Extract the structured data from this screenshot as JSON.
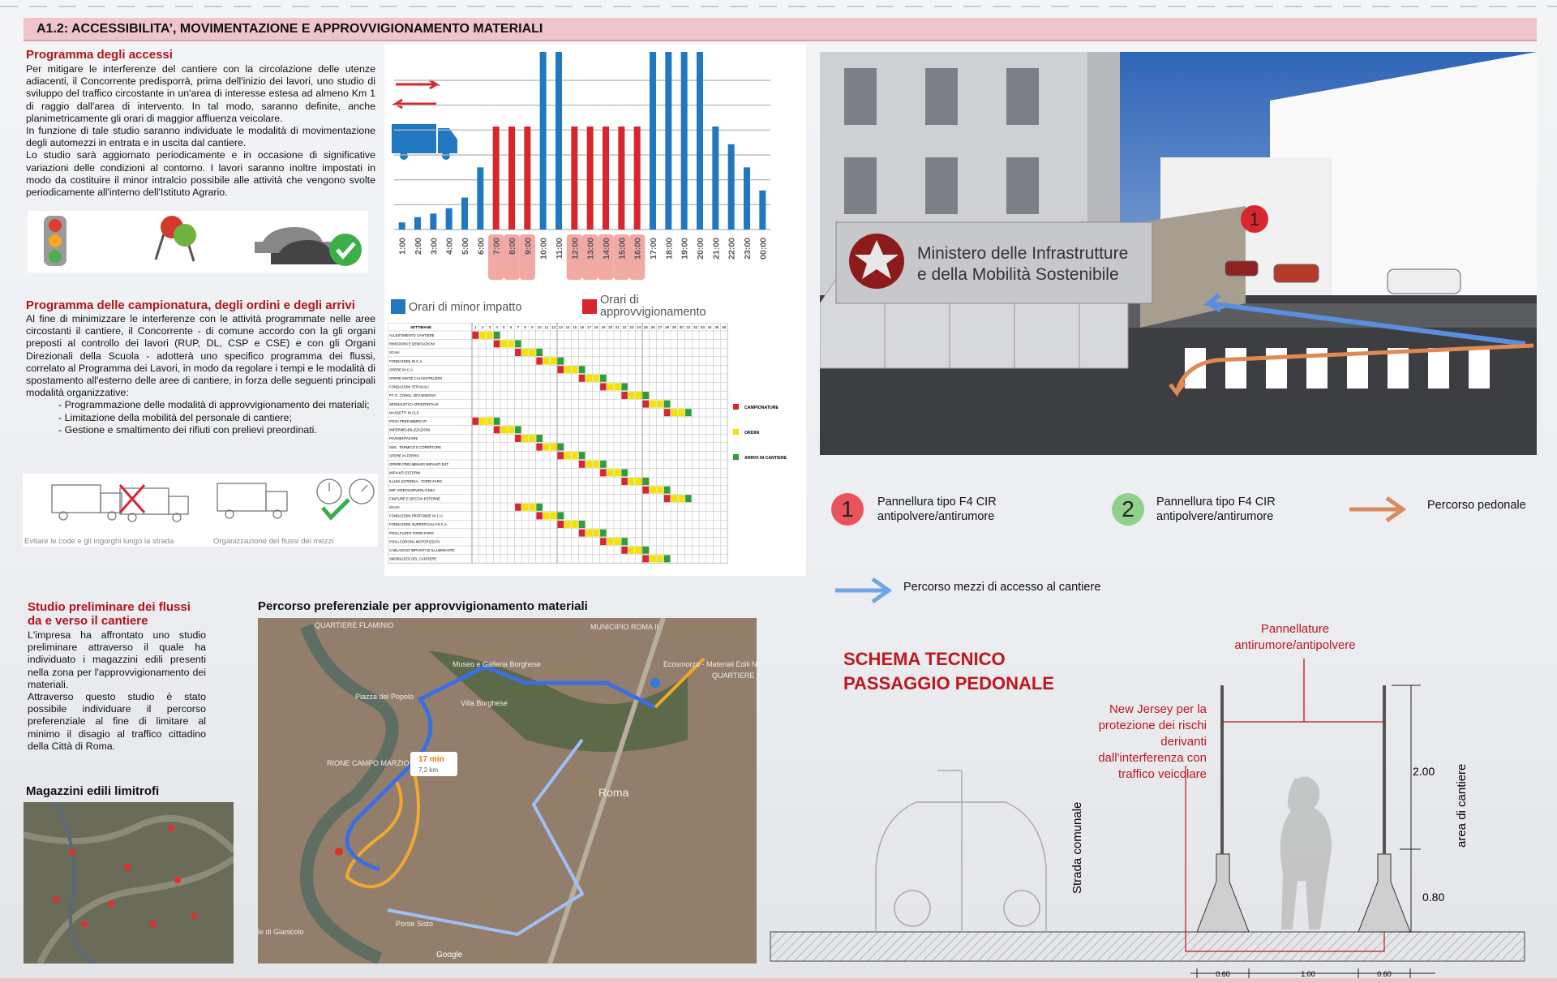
{
  "header": {
    "title": "A1.2: ACCESSIBILITA’, MOVIMENTAZIONE E APPROVVIGIONAMENTO MATERIALI"
  },
  "access": {
    "title": "Programma degli accessi",
    "paragraphs": [
      "Per mitigare le interferenze del cantiere con la circolazione delle utenze adiacenti, il Concorrente predisporrà, prima dell'inizio dei lavori, uno studio di sviluppo del traffico circostante in un'area di interesse estesa ad almeno Km 1 di raggio dall'area di intervento. In tal modo, saranno definite, anche planimetricamente gli orari di maggior affluenza veicolare.",
      "In funzione di tale studio saranno individuate le modalità di movimentazione degli automezzi in entrata e in uscita dal cantiere.",
      "Lo studio sarà aggiornato periodicamente e in occasione di significative variazioni delle condizioni al contorno. I lavori saranno inoltre impostati in modo da costituire il minor intralcio possibile alle attività che vengono svolte periodicamente all'interno dell'Istituto Agrario."
    ]
  },
  "campionature": {
    "title": "Programma delle campionatura, degli ordini e degli arrivi",
    "intro": "Al fine di minimizzare le interferenze con le attività programmate nelle aree circostanti il cantiere, il Concorrente - di comune accordo con la gli organi preposti al controllo dei lavori (RUP, DL, CSP e CSE) e con gli Organi Direzionali della Scuola - adotterà uno specifico programma dei flussi, correlato al Programma dei Lavori, in modo da regolare i tempi e le modalità di spostamento all'esterno delle aree di cantiere, in forza delle seguenti principali modalità organizzative:",
    "bullets": [
      "- Programmazione delle modalità di approvvigionamento dei materiali;",
      "- Limitazione della mobilità del personale di cantiere;",
      "- Gestione e smaltimento dei rifiuti con prelievi preordinati."
    ]
  },
  "flows": {
    "captions": [
      "Evitare le code e gli ingorghi lungo la strada",
      "Organizzazione dei flussi dei mezzi"
    ]
  },
  "traffic_chart": {
    "type": "bar",
    "categories": [
      "1:00",
      "2:00",
      "3:00",
      "4:00",
      "5:00",
      "6:00",
      "7:00",
      "8:00",
      "9:00",
      "10:00",
      "11:00",
      "12:00",
      "13:00",
      "14:00",
      "15:00",
      "16:00",
      "17:00",
      "18:00",
      "19:00",
      "20:00",
      "21:00",
      "22:00",
      "23:00",
      "00:00"
    ],
    "series": [
      {
        "name": "Orari di minor impatto",
        "color": "#1f78c1",
        "values": [
          4,
          7,
          9,
          12,
          18,
          35,
          null,
          null,
          null,
          100,
          100,
          null,
          null,
          null,
          null,
          null,
          100,
          100,
          100,
          100,
          58,
          48,
          35,
          22
        ]
      },
      {
        "name": "Orari di approvvigionamento",
        "color": "#d7262e",
        "values": [
          null,
          null,
          null,
          null,
          null,
          null,
          58,
          58,
          58,
          null,
          null,
          58,
          58,
          58,
          58,
          58,
          null,
          null,
          null,
          null,
          null,
          null,
          null,
          null
        ]
      }
    ],
    "ylim": [
      0,
      100
    ],
    "yticks": [
      0,
      14,
      28,
      42,
      56,
      70,
      84
    ],
    "grid": true
  },
  "schedule": {
    "week_header": "SETTIMANE",
    "weeks": [
      1,
      2,
      3,
      4,
      5,
      6,
      7,
      8,
      9,
      10,
      11,
      12,
      13,
      14,
      15,
      16,
      17,
      18,
      19,
      20,
      21,
      22,
      23,
      24,
      25,
      26,
      27,
      28,
      29,
      30,
      31,
      32,
      33,
      34,
      35,
      36
    ],
    "activities": [
      "ALLESTIMENTO CANTIERE",
      "RIMOZIONI E DEMOLIZIONI",
      "SCAVI",
      "FONDAZIONI IN C.A.",
      "OPERE IN C.A.",
      "OPERE MISTE CALCESTRUZZO",
      "FONDAZIONI STRADALI",
      "P.T.O. CONGL. BITUMINOSO",
      "SEGNALETICA ORIZZONTALE",
      "MASSETTI IN CLS",
      "POSA PREFABBRICATI",
      "IMPERMEABILIZZAZIONI",
      "PAVIMENTAZIONI",
      "ISOL. TERMICO E COPERTURE",
      "OPERE IN FERRO",
      "OPERE PRELIMINARI IMPIANTI EST.",
      "IMPIANTI ESTERNI",
      "ILLUM. ESTERNA - TORRI FARO",
      "IMP. VIDEOSORVEGLIANZA",
      "FINITURE E DEST.NI ESTERNE",
      "SCAVI",
      "FONDAZIONI PROFONDE IN C.A.",
      "FONDAZIONI SUPERFICIALI IN C.A.",
      "POSA FUSTO TORRI FARO",
      "POSA CORONA MOTORIZZATA",
      "CABLAGGIO IMPIANTI DI ILLUMINANTE",
      "SMOBILIZZO DEL CANTIERE"
    ],
    "legend": [
      {
        "label": "CAMPIONATURE",
        "color": "#d7262e"
      },
      {
        "label": "ORDINI",
        "color": "#f2e300"
      },
      {
        "label": "ARRIVI IN CANTIERE",
        "color": "#2e9d3a"
      }
    ]
  },
  "render": {
    "sign": [
      "Ministero delle Infrastrutture",
      "e della Mobilità Sostenibile"
    ],
    "marker": "1"
  },
  "legend": {
    "panel1": {
      "marker": "1",
      "lines": [
        "Pannellura tipo F4 CIR",
        "antipolvere/antirumore"
      ]
    },
    "panel2": {
      "marker": "2",
      "lines": [
        "Pannellura tipo F4 CIR",
        "antipolvere/antirumore"
      ]
    },
    "pedestrian": "Percorso pedonale",
    "vehicles": "Percorso mezzi di accesso al cantiere"
  },
  "study": {
    "title": [
      "Studio preliminare dei flussi",
      "da e verso il cantiere"
    ],
    "paragraphs": [
      "L'impresa ha affrontato uno studio preliminare attraverso il quale ha individuato i magazzini edili presenti nella zona per l'approvvigionamento dei materiali.",
      "Attraverso questo studio è stato possibile individuare il percorso preferenziale al fine di limitare al minimo il disagio al traffico cittadino della Città di Roma."
    ]
  },
  "warehouses": {
    "title": "Magazzini edili limitrofi"
  },
  "route_map": {
    "title": "Percorso preferenziale per approvvigionamento materiali",
    "labels": [
      "QUARTIERE FLAMINIO",
      "MUNICIPIO ROMA II",
      "Museo e Galleria Borghese",
      "Ecosmorzo - Materiali Edili Naturali",
      "Piazza del Popolo",
      "Villa Borghese",
      "RIONE CAMPO MARZIO",
      "Roma",
      "Ponte Sisto",
      "le di Gianicolo",
      "QUARTIERE NOMENTANO"
    ],
    "duration": "17 min",
    "distance": "7,2 km",
    "attribution": "Google"
  },
  "section": {
    "title": [
      "SCHEMA TECNICO",
      "PASSAGGIO PEDONALE"
    ],
    "panels_label": [
      "Pannellature",
      "antirumore/antipolvere"
    ],
    "jersey_label": [
      "New Jersey per la",
      "protezione dei rischi",
      "derivanti",
      "dall'interferenza con",
      "traffico veicolare"
    ],
    "road": "Strada comunale",
    "site": "area di cantiere",
    "dims": {
      "height": "2.00",
      "base": "0.80",
      "w1": "0.60",
      "w2": "1.00",
      "w3": "0.60"
    }
  }
}
